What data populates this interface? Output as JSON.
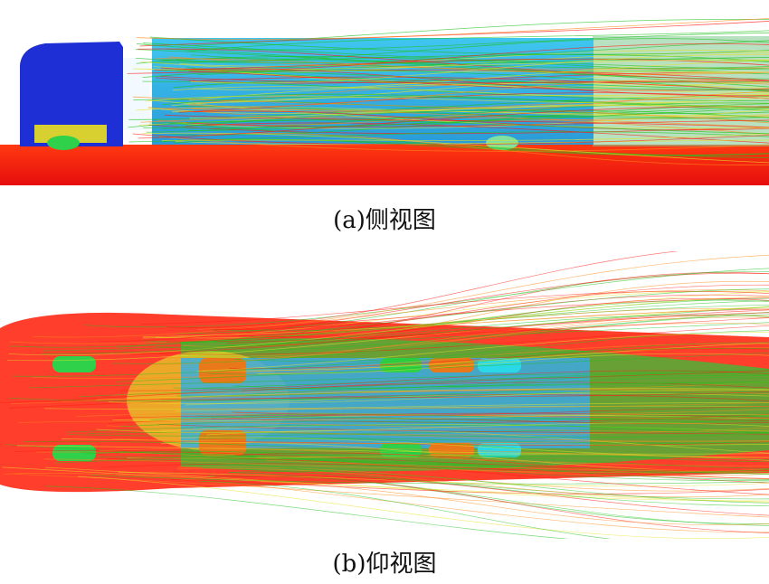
{
  "captions": {
    "side": "(a)侧视图",
    "bottom": "(b)仰视图"
  },
  "colors": {
    "cab_blue": "#1e2fd6",
    "trailer_cyan": "#39b0e8",
    "ground_red": "#ff1a10",
    "streak_green": "#22c21e",
    "streak_yellow": "#e6e22a",
    "streak_orange": "#ff8a1a",
    "wheel_orange": "#e8781a",
    "wheel_green": "#2fd04a",
    "wheel_cyan": "#2ad8e8"
  },
  "panels": {
    "side": {
      "icon": "truck-side-streamlines-image"
    },
    "bottom": {
      "icon": "truck-bottom-streamlines-image"
    }
  }
}
